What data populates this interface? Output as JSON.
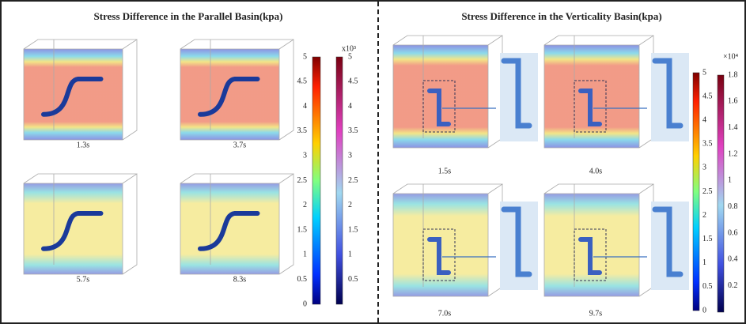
{
  "left": {
    "title": "Stress Difference in the Parallel Basin(kpa)",
    "times": [
      "1.3s",
      "3.7s",
      "5.7s",
      "8.3s"
    ],
    "bar1_ticks": [
      "5",
      "4.5",
      "4",
      "3.5",
      "3",
      "2.5",
      "2",
      "1.5",
      "1",
      "0.5",
      "0"
    ],
    "bar2_exponent": "x10³",
    "bar2_ticks": [
      "5",
      "4.5",
      "4",
      "3.5",
      "3",
      "2.5",
      "2",
      "1.5",
      "1",
      "0.5"
    ]
  },
  "right": {
    "title": "Stress Difference in the Verticality Basin(kpa)",
    "times": [
      "1.5s",
      "4.0s",
      "7.0s",
      "9.7s"
    ],
    "bar1_ticks": [
      "5",
      "4.5",
      "4",
      "3.5",
      "3",
      "2.5",
      "2",
      "1.5",
      "1",
      "0.5",
      "0"
    ],
    "bar2_exponent": "×10⁴",
    "bar2_ticks": [
      "1.8",
      "1.6",
      "1.4",
      "1.2",
      "1",
      "0.8",
      "0.6",
      "0.4",
      "0.2"
    ]
  }
}
